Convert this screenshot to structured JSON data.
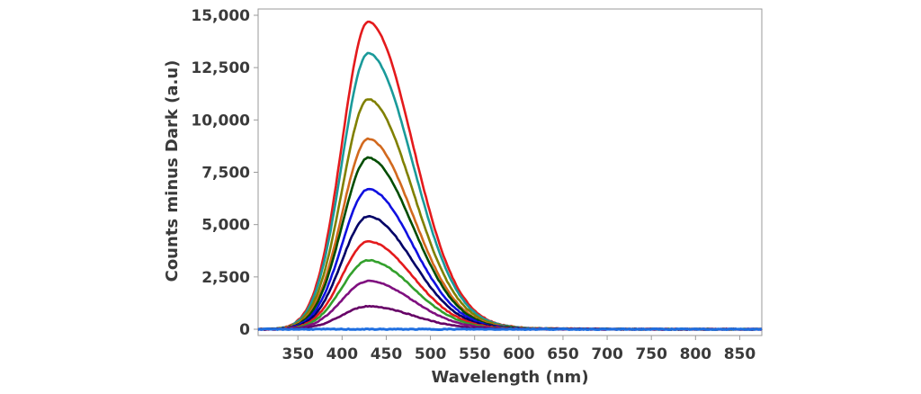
{
  "chart_data": {
    "type": "line",
    "title": "",
    "xlabel": "Wavelength (nm)",
    "ylabel": "Counts minus Dark (a.u)",
    "xlim": [
      305,
      875
    ],
    "ylim": [
      -300,
      15300
    ],
    "x_ticks": [
      350,
      400,
      450,
      500,
      550,
      600,
      650,
      700,
      750,
      800,
      850
    ],
    "x_tick_labels": [
      "350",
      "400",
      "450",
      "500",
      "550",
      "600",
      "650",
      "700",
      "750",
      "800",
      "850"
    ],
    "y_ticks": [
      0,
      2500,
      5000,
      7500,
      10000,
      12500,
      15000
    ],
    "y_tick_labels": [
      "0",
      "2,500",
      "5,000",
      "7,500",
      "10,000",
      "12,500",
      "15,000"
    ],
    "grid": false,
    "legend": "none",
    "peak_wavelength": 430,
    "series": [
      {
        "color": "#e41a1c",
        "peak": 14700
      },
      {
        "color": "#1a9a9a",
        "peak": 13200
      },
      {
        "color": "#808000",
        "peak": 11000
      },
      {
        "color": "#d2691e",
        "peak": 9100
      },
      {
        "color": "#004d00",
        "peak": 8200
      },
      {
        "color": "#1010e0",
        "peak": 6700
      },
      {
        "color": "#000066",
        "peak": 5400
      },
      {
        "color": "#e41a1c",
        "peak": 4200
      },
      {
        "color": "#33a02c",
        "peak": 3300
      },
      {
        "color": "#7f0f7f",
        "peak": 2300
      },
      {
        "color": "#660066",
        "peak": 1100
      },
      {
        "color": "#1e6ee0",
        "peak": 0
      }
    ]
  }
}
